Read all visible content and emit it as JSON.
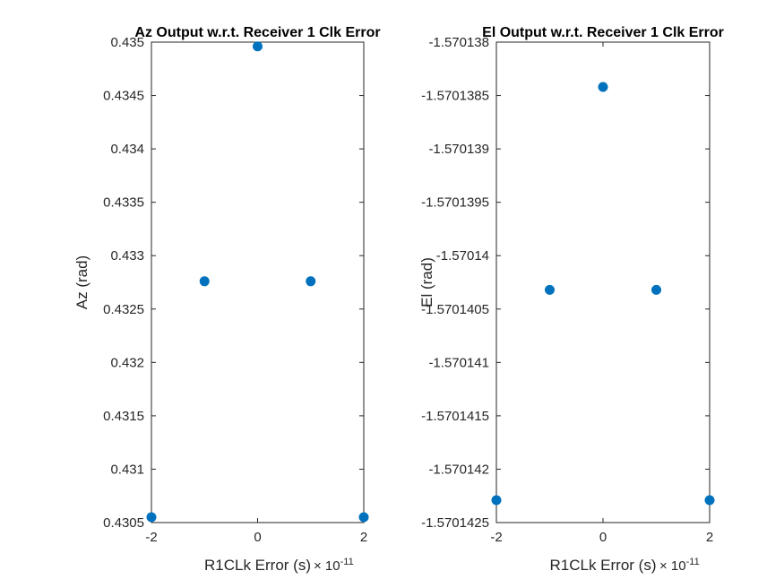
{
  "chart_data": [
    {
      "type": "scatter",
      "title": "Az Output w.r.t. Receiver 1 Clk Error",
      "xlabel": "R1CLk Error (s)",
      "ylabel": "Az (rad)",
      "x_exponent_label": "× 10",
      "x_exponent_power": "-11",
      "xlim": [
        -2e-11,
        2e-11
      ],
      "ylim": [
        0.4305,
        0.435
      ],
      "xticks": [
        -2e-11,
        0,
        2e-11
      ],
      "xtick_labels": [
        "-2",
        "0",
        "2"
      ],
      "yticks": [
        0.4305,
        0.431,
        0.4315,
        0.432,
        0.4325,
        0.433,
        0.4335,
        0.434,
        0.4345,
        0.435
      ],
      "ytick_labels": [
        "0.4305",
        "0.431",
        "0.4315",
        "0.432",
        "0.4325",
        "0.433",
        "0.4335",
        "0.434",
        "0.4345",
        "0.435"
      ],
      "grid": false,
      "series": [
        {
          "x": [
            -2e-11,
            -1e-11,
            0,
            1e-11,
            2e-11
          ],
          "y": [
            0.43055,
            0.43276,
            0.43496,
            0.43276,
            0.43055
          ],
          "color": "#0072BD"
        }
      ]
    },
    {
      "type": "scatter",
      "title": "El Output w.r.t. Receiver 1 Clk Error",
      "xlabel": "R1CLk Error (s)",
      "ylabel": "El (rad)",
      "x_exponent_label": "× 10",
      "x_exponent_power": "-11",
      "xlim": [
        -2e-11,
        2e-11
      ],
      "ylim": [
        -1.5701425,
        -1.570138
      ],
      "xticks": [
        -2e-11,
        0,
        2e-11
      ],
      "xtick_labels": [
        "-2",
        "0",
        "2"
      ],
      "yticks": [
        -1.5701425,
        -1.570142,
        -1.5701415,
        -1.570141,
        -1.5701405,
        -1.57014,
        -1.5701395,
        -1.570139,
        -1.5701385,
        -1.570138
      ],
      "ytick_labels": [
        "-1.5701425",
        "-1.570142",
        "-1.5701415",
        "-1.570141",
        "-1.5701405",
        "-1.57014",
        "-1.5701395",
        "-1.570139",
        "-1.5701385",
        "-1.570138"
      ],
      "grid": false,
      "series": [
        {
          "x": [
            -2e-11,
            -1e-11,
            0,
            1e-11,
            2e-11
          ],
          "y": [
            -1.57014229,
            -1.57014032,
            -1.57013842,
            -1.57014032,
            -1.57014229
          ],
          "color": "#0072BD"
        }
      ]
    }
  ]
}
